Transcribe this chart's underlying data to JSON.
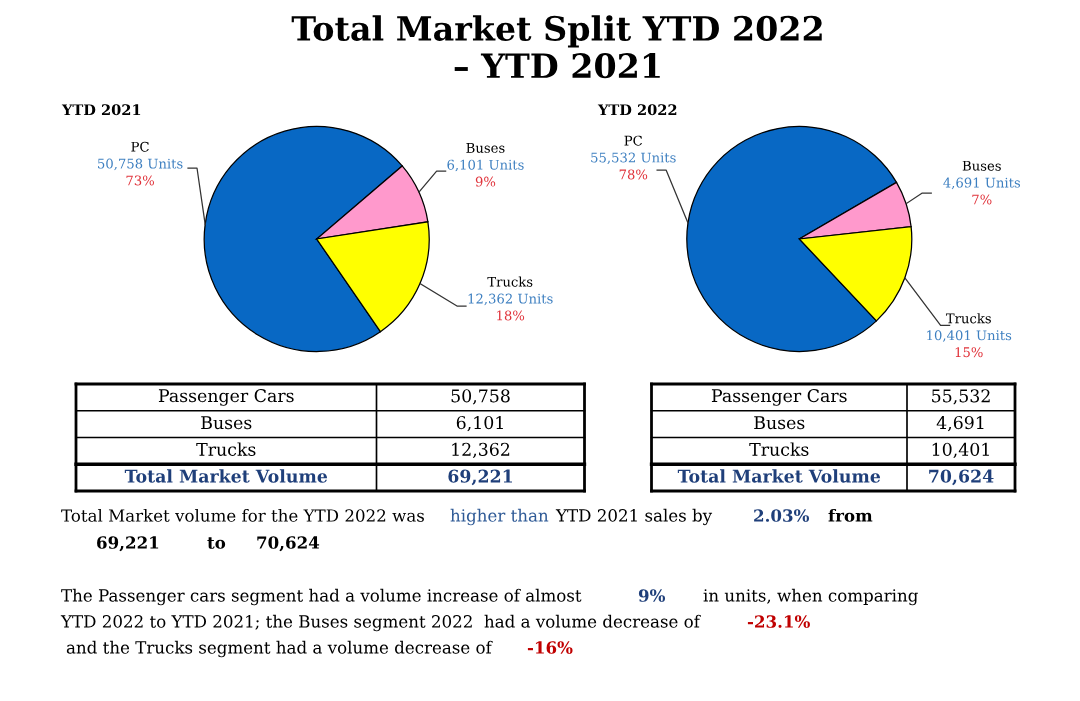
{
  "chart_data": [
    {
      "type": "other",
      "title": "Total Market Split YTD 2022\n– YTD 2021",
      "annotations": [
        "Total Market volume for the YTD 2022 was",
        "higher than",
        "YTD 2021 sales by",
        "2.03%",
        "from",
        "69,221",
        "to",
        "70,624",
        "The Passenger cars segment had a volume increase of almost",
        "9%",
        "in units, when comparing",
        "YTD 2022 to YTD 2021; the Buses segment 2022  had a volume decrease of",
        "-23.1%",
        "and the Trucks segment had a volume decrease of",
        "-16%"
      ]
    },
    {
      "type": "pie",
      "title": "YTD 2021",
      "categories": [
        "PC",
        "Buses",
        "Trucks"
      ],
      "values": [
        50758,
        6101,
        12362
      ],
      "colors": [
        "#0868c4",
        "#ff99cc",
        "#ffff00"
      ],
      "value_labels": [
        "50,758 Units\n73%",
        "6,101 Units\n9%",
        "12,362 Units\n18%"
      ],
      "annotations": [
        "Passenger Cars",
        "50,758",
        "Buses",
        "6,101",
        "Trucks",
        "12,362",
        "Total Market Volume",
        "69,221"
      ]
    },
    {
      "type": "pie",
      "title": "YTD 2022",
      "categories": [
        "PC",
        "Buses",
        "Trucks"
      ],
      "values": [
        55532,
        4691,
        10401
      ],
      "colors": [
        "#0868c4",
        "#ff99cc",
        "#ffff00"
      ],
      "value_labels": [
        "55,532 Units\n78%",
        "4,691 Units\n7%",
        "10,401 Units\n15%"
      ],
      "annotations": [
        "Passenger Cars",
        "55,532",
        "Buses",
        "4,691",
        "Trucks",
        "10,401",
        "Total Market Volume",
        "70,624"
      ]
    }
  ]
}
